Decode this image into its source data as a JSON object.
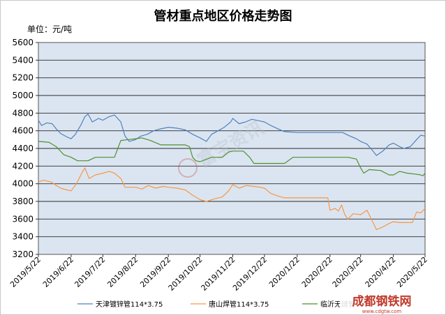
{
  "chart_data": {
    "type": "line",
    "title": "管材重点地区价格走势图",
    "unit_label": "单位：元/吨",
    "ylim": [
      3200,
      5600
    ],
    "yticks": [
      3200,
      3400,
      3600,
      3800,
      4000,
      4200,
      4400,
      4600,
      4800,
      5000,
      5200,
      5400,
      5600
    ],
    "xlim": [
      "2019/5/22",
      "2020/5/22"
    ],
    "xtick_labels": [
      "2019/5/22",
      "2019/6/22",
      "2019/7/22",
      "2019/8/22",
      "2019/9/22",
      "2019/10/22",
      "2019/11/22",
      "2019/12/22",
      "2020/1/22",
      "2020/2/22",
      "2020/3/22",
      "2020/4/22",
      "2020/5/22"
    ],
    "grid": true,
    "legend_position": "bottom",
    "series": [
      {
        "name": "天津镀锌管114*3.75",
        "color": "#4f81bd",
        "points": [
          [
            "2019/5/22",
            4720
          ],
          [
            "2019/5/25",
            4660
          ],
          [
            "2019/5/30",
            4690
          ],
          [
            "2019/6/4",
            4680
          ],
          [
            "2019/6/8",
            4620
          ],
          [
            "2019/6/12",
            4570
          ],
          [
            "2019/6/18",
            4530
          ],
          [
            "2019/6/22",
            4510
          ],
          [
            "2019/6/26",
            4560
          ],
          [
            "2019/7/1",
            4660
          ],
          [
            "2019/7/5",
            4760
          ],
          [
            "2019/7/8",
            4790
          ],
          [
            "2019/7/12",
            4700
          ],
          [
            "2019/7/18",
            4740
          ],
          [
            "2019/7/22",
            4720
          ],
          [
            "2019/7/28",
            4760
          ],
          [
            "2019/8/2",
            4780
          ],
          [
            "2019/8/8",
            4700
          ],
          [
            "2019/8/12",
            4540
          ],
          [
            "2019/8/16",
            4480
          ],
          [
            "2019/8/22",
            4500
          ],
          [
            "2019/8/27",
            4540
          ],
          [
            "2019/9/2",
            4560
          ],
          [
            "2019/9/8",
            4600
          ],
          [
            "2019/9/14",
            4620
          ],
          [
            "2019/9/22",
            4640
          ],
          [
            "2019/9/30",
            4630
          ],
          [
            "2019/10/8",
            4610
          ],
          [
            "2019/10/15",
            4560
          ],
          [
            "2019/10/22",
            4520
          ],
          [
            "2019/10/28",
            4480
          ],
          [
            "2019/11/2",
            4560
          ],
          [
            "2019/11/8",
            4600
          ],
          [
            "2019/11/14",
            4640
          ],
          [
            "2019/11/20",
            4700
          ],
          [
            "2019/11/22",
            4740
          ],
          [
            "2019/11/28",
            4680
          ],
          [
            "2019/12/4",
            4700
          ],
          [
            "2019/12/10",
            4730
          ],
          [
            "2019/12/18",
            4710
          ],
          [
            "2019/12/22",
            4700
          ],
          [
            "2019/12/28",
            4660
          ],
          [
            "2020/1/4",
            4620
          ],
          [
            "2020/1/10",
            4590
          ],
          [
            "2020/1/22",
            4580
          ],
          [
            "2020/2/5",
            4580
          ],
          [
            "2020/2/22",
            4580
          ],
          [
            "2020/3/5",
            4580
          ],
          [
            "2020/3/12",
            4540
          ],
          [
            "2020/3/18",
            4510
          ],
          [
            "2020/3/22",
            4480
          ],
          [
            "2020/3/28",
            4450
          ],
          [
            "2020/4/2",
            4380
          ],
          [
            "2020/4/6",
            4320
          ],
          [
            "2020/4/12",
            4370
          ],
          [
            "2020/4/18",
            4440
          ],
          [
            "2020/4/22",
            4460
          ],
          [
            "2020/4/28",
            4420
          ],
          [
            "2020/5/2",
            4400
          ],
          [
            "2020/5/8",
            4420
          ],
          [
            "2020/5/14",
            4500
          ],
          [
            "2020/5/18",
            4550
          ],
          [
            "2020/5/22",
            4540
          ]
        ]
      },
      {
        "name": "唐山焊管114*3.75",
        "color": "#f79646",
        "points": [
          [
            "2019/5/22",
            4020
          ],
          [
            "2019/5/27",
            4040
          ],
          [
            "2019/6/3",
            4020
          ],
          [
            "2019/6/8",
            3980
          ],
          [
            "2019/6/12",
            3950
          ],
          [
            "2019/6/18",
            3930
          ],
          [
            "2019/6/22",
            3920
          ],
          [
            "2019/6/27",
            4000
          ],
          [
            "2019/7/2",
            4120
          ],
          [
            "2019/7/5",
            4180
          ],
          [
            "2019/7/9",
            4060
          ],
          [
            "2019/7/15",
            4100
          ],
          [
            "2019/7/22",
            4120
          ],
          [
            "2019/7/28",
            4140
          ],
          [
            "2019/8/2",
            4120
          ],
          [
            "2019/8/8",
            4060
          ],
          [
            "2019/8/12",
            3960
          ],
          [
            "2019/8/18",
            3960
          ],
          [
            "2019/8/22",
            3960
          ],
          [
            "2019/8/28",
            3940
          ],
          [
            "2019/9/3",
            3980
          ],
          [
            "2019/9/10",
            3950
          ],
          [
            "2019/9/17",
            3970
          ],
          [
            "2019/9/22",
            3960
          ],
          [
            "2019/9/30",
            3950
          ],
          [
            "2019/10/8",
            3930
          ],
          [
            "2019/10/15",
            3870
          ],
          [
            "2019/10/22",
            3820
          ],
          [
            "2019/10/28",
            3800
          ],
          [
            "2019/11/5",
            3830
          ],
          [
            "2019/11/12",
            3850
          ],
          [
            "2019/11/18",
            3920
          ],
          [
            "2019/11/22",
            3990
          ],
          [
            "2019/11/28",
            3950
          ],
          [
            "2019/12/5",
            3980
          ],
          [
            "2019/12/12",
            3970
          ],
          [
            "2019/12/18",
            3960
          ],
          [
            "2019/12/22",
            3950
          ],
          [
            "2019/12/28",
            3890
          ],
          [
            "2020/1/4",
            3860
          ],
          [
            "2020/1/10",
            3840
          ],
          [
            "2020/1/22",
            3840
          ],
          [
            "2020/2/10",
            3840
          ],
          [
            "2020/2/20",
            3840
          ],
          [
            "2020/2/22",
            3700
          ],
          [
            "2020/2/27",
            3720
          ],
          [
            "2020/3/1",
            3690
          ],
          [
            "2020/3/4",
            3760
          ],
          [
            "2020/3/7",
            3650
          ],
          [
            "2020/3/10",
            3600
          ],
          [
            "2020/3/15",
            3660
          ],
          [
            "2020/3/22",
            3650
          ],
          [
            "2020/3/28",
            3700
          ],
          [
            "2020/4/2",
            3580
          ],
          [
            "2020/4/6",
            3480
          ],
          [
            "2020/4/12",
            3510
          ],
          [
            "2020/4/18",
            3550
          ],
          [
            "2020/4/22",
            3570
          ],
          [
            "2020/4/28",
            3560
          ],
          [
            "2020/5/4",
            3560
          ],
          [
            "2020/5/10",
            3560
          ],
          [
            "2020/5/14",
            3680
          ],
          [
            "2020/5/18",
            3670
          ],
          [
            "2020/5/22",
            3720
          ]
        ]
      },
      {
        "name": "临沂无缝管",
        "color": "#4e8f2e",
        "points": [
          [
            "2019/5/22",
            4480
          ],
          [
            "2019/6/1",
            4470
          ],
          [
            "2019/6/8",
            4420
          ],
          [
            "2019/6/15",
            4330
          ],
          [
            "2019/6/22",
            4300
          ],
          [
            "2019/6/28",
            4260
          ],
          [
            "2019/7/8",
            4260
          ],
          [
            "2019/7/15",
            4300
          ],
          [
            "2019/7/22",
            4300
          ],
          [
            "2019/8/2",
            4300
          ],
          [
            "2019/8/8",
            4490
          ],
          [
            "2019/8/15",
            4500
          ],
          [
            "2019/8/22",
            4510
          ],
          [
            "2019/8/28",
            4520
          ],
          [
            "2019/9/5",
            4490
          ],
          [
            "2019/9/15",
            4440
          ],
          [
            "2019/9/22",
            4440
          ],
          [
            "2019/10/8",
            4440
          ],
          [
            "2019/10/12",
            4420
          ],
          [
            "2019/10/15",
            4300
          ],
          [
            "2019/10/18",
            4260
          ],
          [
            "2019/10/22",
            4250
          ],
          [
            "2019/11/2",
            4300
          ],
          [
            "2019/11/12",
            4300
          ],
          [
            "2019/11/18",
            4360
          ],
          [
            "2019/11/22",
            4370
          ],
          [
            "2019/12/2",
            4370
          ],
          [
            "2019/12/8",
            4300
          ],
          [
            "2019/12/12",
            4230
          ],
          [
            "2019/12/22",
            4230
          ],
          [
            "2020/1/10",
            4230
          ],
          [
            "2020/1/18",
            4300
          ],
          [
            "2020/1/22",
            4300
          ],
          [
            "2020/2/22",
            4300
          ],
          [
            "2020/3/10",
            4300
          ],
          [
            "2020/3/18",
            4280
          ],
          [
            "2020/3/22",
            4180
          ],
          [
            "2020/3/25",
            4120
          ],
          [
            "2020/3/30",
            4160
          ],
          [
            "2020/4/10",
            4150
          ],
          [
            "2020/4/18",
            4100
          ],
          [
            "2020/4/22",
            4100
          ],
          [
            "2020/4/28",
            4140
          ],
          [
            "2020/5/5",
            4120
          ],
          [
            "2020/5/12",
            4110
          ],
          [
            "2020/5/18",
            4100
          ],
          [
            "2020/5/20",
            4090
          ],
          [
            "2020/5/22",
            4120
          ]
        ]
      }
    ]
  },
  "watermark": {
    "center_text": "富宝资讯",
    "corner_text_main": "成都钢铁网",
    "corner_text_sub": "www.cdgtw.com"
  }
}
